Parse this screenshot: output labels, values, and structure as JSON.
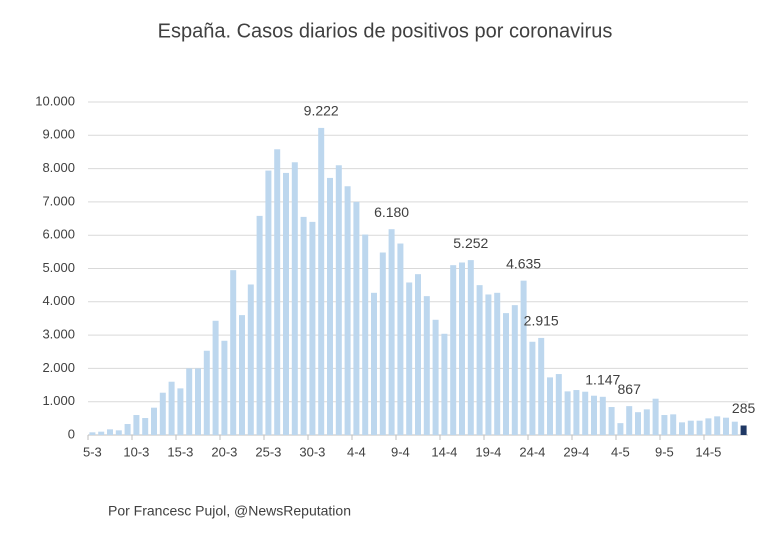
{
  "chart_data": {
    "type": "bar",
    "title": "España. Casos diarios de positivos por coronavirus",
    "source": "Por Francesc Pujol, @NewsReputation",
    "categories": [
      "5-3",
      null,
      null,
      null,
      null,
      "10-3",
      null,
      null,
      null,
      null,
      "15-3",
      null,
      null,
      null,
      null,
      "20-3",
      null,
      null,
      null,
      null,
      "25-3",
      null,
      null,
      null,
      null,
      "30-3",
      null,
      null,
      null,
      null,
      "4-4",
      null,
      null,
      null,
      null,
      "9-4",
      null,
      null,
      null,
      null,
      "14-4",
      null,
      null,
      null,
      null,
      "19-4",
      null,
      null,
      null,
      null,
      "24-4",
      null,
      null,
      null,
      null,
      "29-4",
      null,
      null,
      null,
      null,
      "4-5",
      null,
      null,
      null,
      null,
      "9-5",
      null,
      null,
      null,
      null,
      "14-5",
      null,
      null,
      null,
      null
    ],
    "values": [
      80,
      100,
      170,
      140,
      330,
      600,
      510,
      820,
      1270,
      1600,
      1400,
      2000,
      2000,
      2530,
      3430,
      2830,
      4950,
      3600,
      4520,
      6580,
      7940,
      8580,
      7870,
      8190,
      6550,
      6400,
      9222,
      7720,
      8100,
      7470,
      7000,
      6020,
      4270,
      5480,
      6180,
      5750,
      4580,
      4830,
      4170,
      3460,
      3040,
      5100,
      5180,
      5252,
      4500,
      4220,
      4270,
      3660,
      3900,
      4635,
      2800,
      2915,
      1730,
      1830,
      1310,
      1350,
      1300,
      1180,
      1147,
      840,
      356,
      867,
      685,
      770,
      1090,
      600,
      620,
      380,
      430,
      430,
      500,
      560,
      520,
      400,
      285
    ],
    "value_labels": [
      null,
      null,
      null,
      null,
      null,
      null,
      null,
      null,
      null,
      null,
      null,
      null,
      null,
      null,
      null,
      null,
      null,
      null,
      null,
      null,
      null,
      null,
      null,
      null,
      null,
      null,
      "9.222",
      null,
      null,
      null,
      null,
      null,
      null,
      null,
      "6.180",
      null,
      null,
      null,
      null,
      null,
      null,
      null,
      null,
      "5.252",
      null,
      null,
      null,
      null,
      null,
      "4.635",
      null,
      "2.915",
      null,
      null,
      null,
      null,
      null,
      null,
      "1.147",
      null,
      null,
      "867",
      null,
      null,
      null,
      null,
      null,
      null,
      null,
      null,
      null,
      null,
      null,
      null,
      "285"
    ],
    "colors": [
      "#bdd7ee",
      "#bdd7ee",
      "#bdd7ee",
      "#bdd7ee",
      "#bdd7ee",
      "#bdd7ee",
      "#bdd7ee",
      "#bdd7ee",
      "#bdd7ee",
      "#bdd7ee",
      "#bdd7ee",
      "#bdd7ee",
      "#bdd7ee",
      "#bdd7ee",
      "#bdd7ee",
      "#bdd7ee",
      "#bdd7ee",
      "#bdd7ee",
      "#bdd7ee",
      "#bdd7ee",
      "#bdd7ee",
      "#bdd7ee",
      "#bdd7ee",
      "#bdd7ee",
      "#bdd7ee",
      "#bdd7ee",
      "#bdd7ee",
      "#bdd7ee",
      "#bdd7ee",
      "#bdd7ee",
      "#bdd7ee",
      "#bdd7ee",
      "#bdd7ee",
      "#bdd7ee",
      "#bdd7ee",
      "#bdd7ee",
      "#bdd7ee",
      "#bdd7ee",
      "#bdd7ee",
      "#bdd7ee",
      "#bdd7ee",
      "#bdd7ee",
      "#bdd7ee",
      "#bdd7ee",
      "#bdd7ee",
      "#bdd7ee",
      "#bdd7ee",
      "#bdd7ee",
      "#bdd7ee",
      "#bdd7ee",
      "#bdd7ee",
      "#bdd7ee",
      "#bdd7ee",
      "#bdd7ee",
      "#bdd7ee",
      "#bdd7ee",
      "#bdd7ee",
      "#bdd7ee",
      "#bdd7ee",
      "#bdd7ee",
      "#bdd7ee",
      "#bdd7ee",
      "#bdd7ee",
      "#bdd7ee",
      "#bdd7ee",
      "#bdd7ee",
      "#bdd7ee",
      "#bdd7ee",
      "#bdd7ee",
      "#bdd7ee",
      "#bdd7ee",
      "#bdd7ee",
      "#bdd7ee",
      "#bdd7ee",
      "#1f3864"
    ],
    "ylim": [
      0,
      10000
    ],
    "yticks": [
      0,
      {
        "value": 1000,
        "label": "1.000"
      },
      {
        "value": 2000,
        "label": "2.000"
      },
      {
        "value": 3000,
        "label": "3.000"
      },
      {
        "value": 4000,
        "label": "4.000"
      },
      {
        "value": 5000,
        "label": "5.000"
      },
      {
        "value": 6000,
        "label": "6.000"
      },
      {
        "value": 7000,
        "label": "7.000"
      },
      {
        "value": 8000,
        "label": "8.000"
      },
      {
        "value": 9000,
        "label": "9.000"
      },
      {
        "value": 10000,
        "label": "10.000"
      }
    ],
    "grid": true
  }
}
